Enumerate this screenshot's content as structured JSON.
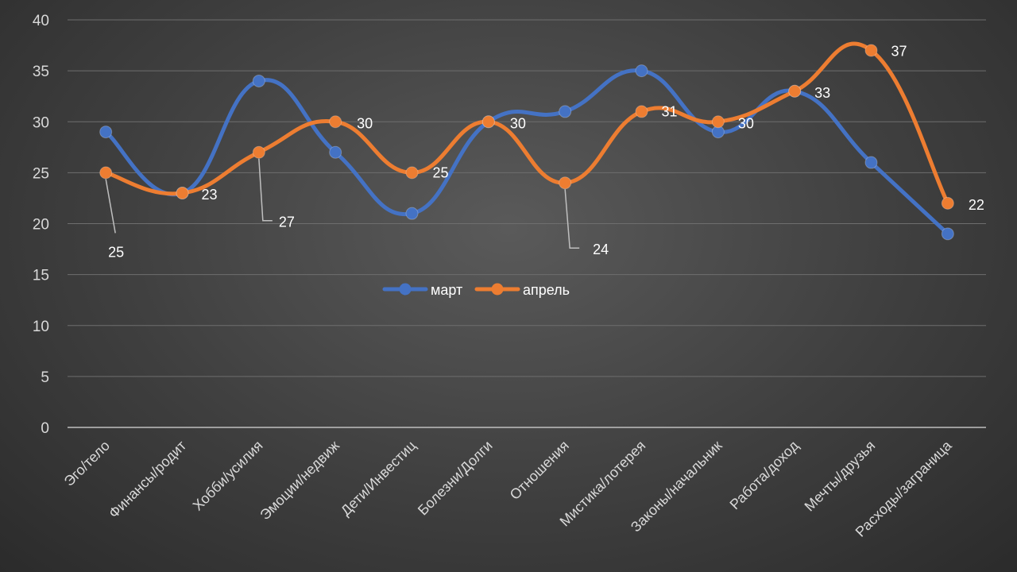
{
  "chart_data": {
    "type": "line",
    "title": "",
    "xlabel": "",
    "ylabel": "",
    "ylim": [
      0,
      40
    ],
    "yticks": [
      "0",
      "5",
      "10",
      "15",
      "20",
      "25",
      "30",
      "35",
      "40"
    ],
    "ytick_values": [
      0,
      5,
      10,
      15,
      20,
      25,
      30,
      35,
      40
    ],
    "grid": true,
    "legend_position": "center",
    "categories": [
      "Эго/тело",
      "Финансы/родит",
      "Хобби/усилия",
      "Эмоции/недвиж",
      "Дети/Инвестиц",
      "Болезни/Долги",
      "Отношения",
      "Мистика/лотерея",
      "Законы/начальник",
      "Работа/доход",
      "Мечты/друзья",
      "Расходы/заграница"
    ],
    "series": [
      {
        "name": "март",
        "color": "#4472c4",
        "values": [
          29,
          23,
          34,
          27,
          21,
          30,
          31,
          35,
          29,
          33,
          26,
          19
        ]
      },
      {
        "name": "апрель",
        "color": "#ed7d31",
        "values": [
          25,
          23,
          27,
          30,
          25,
          30,
          24,
          31,
          30,
          33,
          37,
          22
        ],
        "data_labels": [
          "25",
          "23",
          "27",
          "30",
          "25",
          "30",
          "24",
          "31",
          "30",
          "33",
          "37",
          "22"
        ]
      }
    ]
  }
}
